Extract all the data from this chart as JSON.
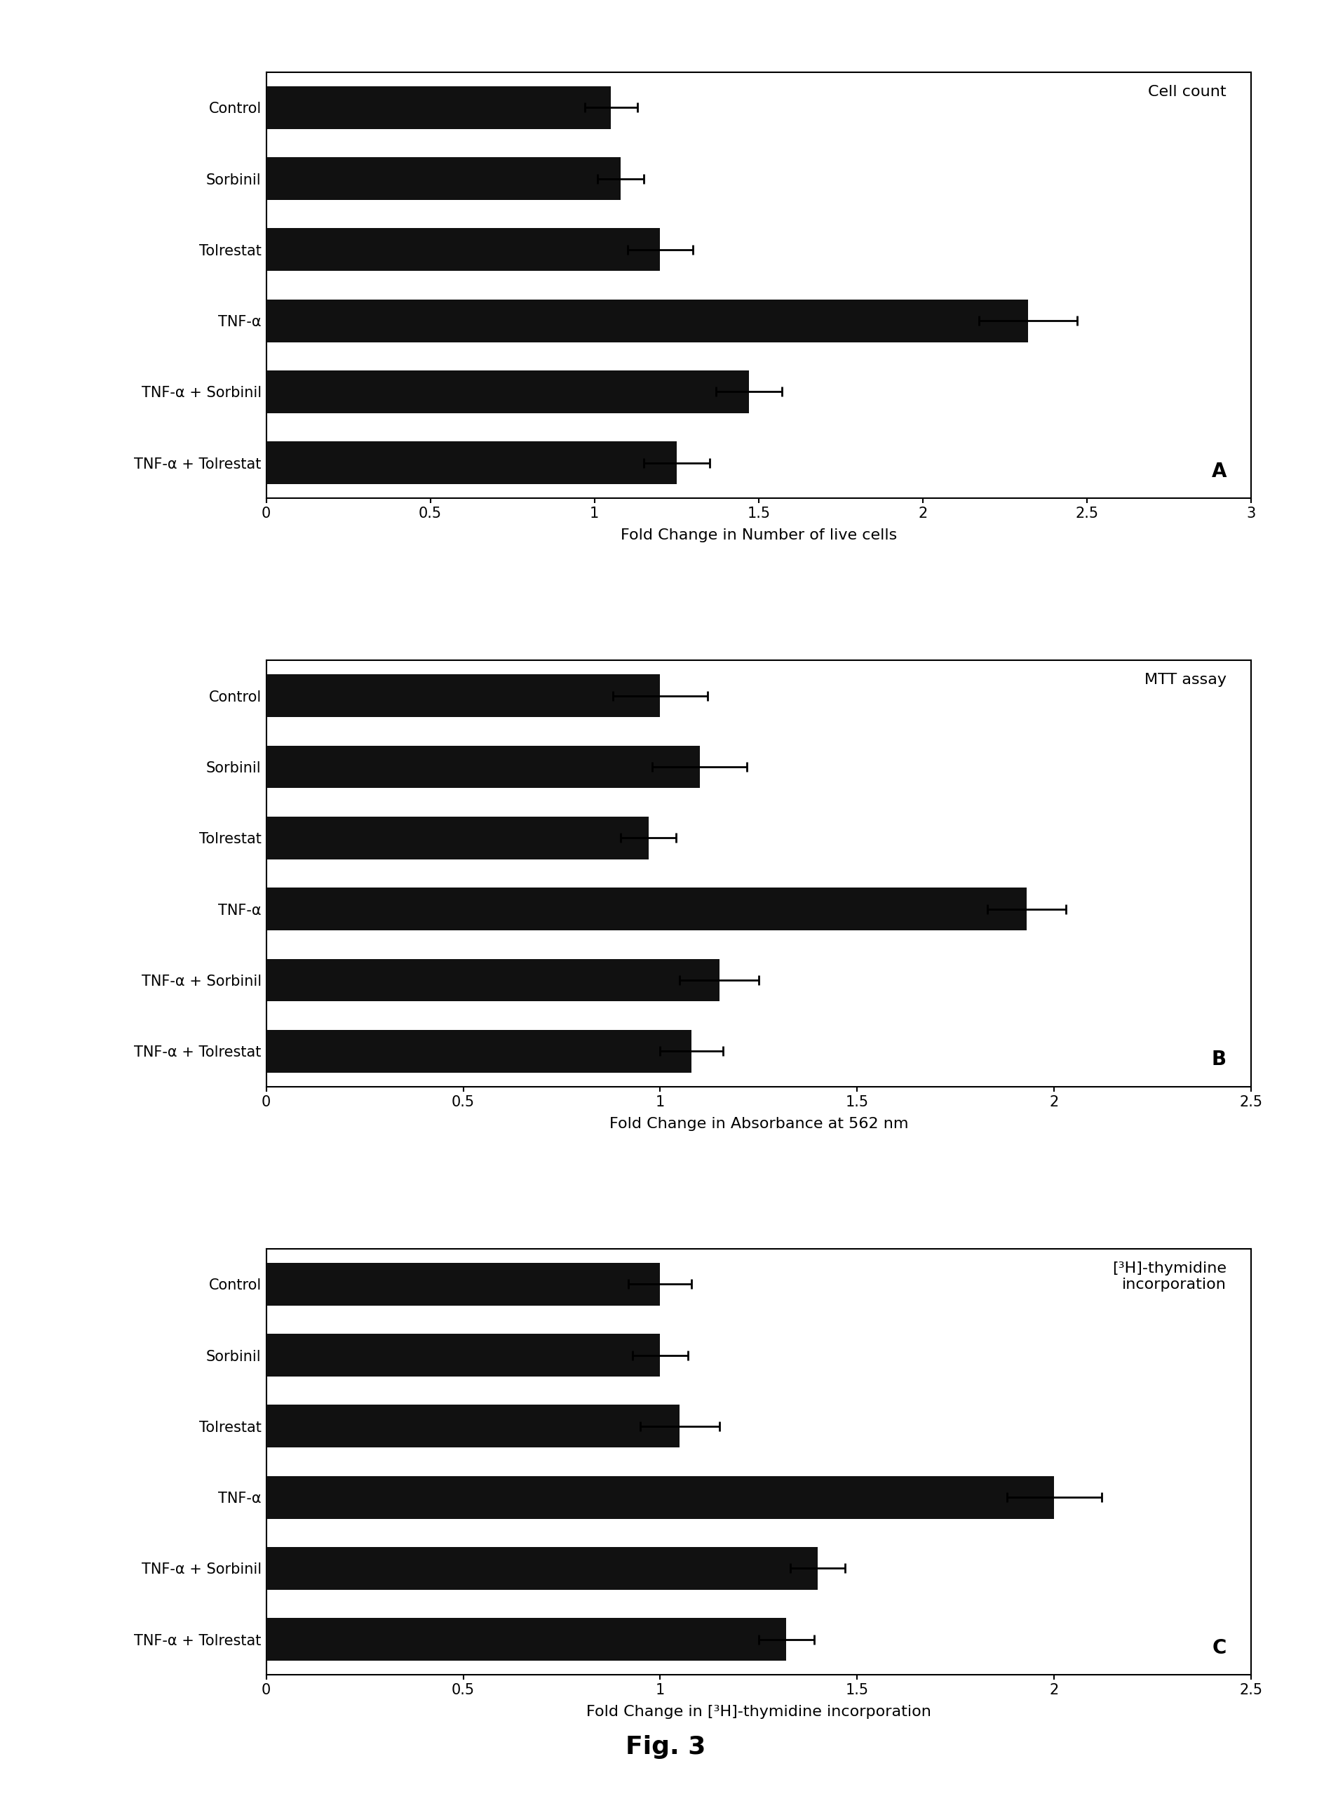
{
  "panel_A": {
    "title": "Cell count",
    "panel_label": "A",
    "categories": [
      "Control",
      "Sorbinil",
      "Tolrestat",
      "TNF-α",
      "TNF-α + Sorbinil",
      "TNF-α + Tolrestat"
    ],
    "values": [
      1.05,
      1.08,
      1.2,
      2.32,
      1.47,
      1.25
    ],
    "errors": [
      0.08,
      0.07,
      0.1,
      0.15,
      0.1,
      0.1
    ],
    "xlabel": "Fold Change in Number of live cells",
    "xlim": [
      0,
      3.0
    ],
    "xticks": [
      0,
      0.5,
      1.0,
      1.5,
      2.0,
      2.5,
      3.0
    ],
    "xticklabels": [
      "0",
      "0.5",
      "1",
      "1.5",
      "2",
      "2.5",
      "3"
    ]
  },
  "panel_B": {
    "title": "MTT assay",
    "panel_label": "B",
    "categories": [
      "Control",
      "Sorbinil",
      "Tolrestat",
      "TNF-α",
      "TNF-α + Sorbinil",
      "TNF-α + Tolrestat"
    ],
    "values": [
      1.0,
      1.1,
      0.97,
      1.93,
      1.15,
      1.08
    ],
    "errors": [
      0.12,
      0.12,
      0.07,
      0.1,
      0.1,
      0.08
    ],
    "xlabel": "Fold Change in Absorbance at 562 nm",
    "xlim": [
      0,
      2.5
    ],
    "xticks": [
      0,
      0.5,
      1.0,
      1.5,
      2.0,
      2.5
    ],
    "xticklabels": [
      "0",
      "0.5",
      "1",
      "1.5",
      "2",
      "2.5"
    ]
  },
  "panel_C": {
    "title": "[³H]-thymidine\nincorporation",
    "panel_label": "C",
    "categories": [
      "Control",
      "Sorbinil",
      "Tolrestat",
      "TNF-α",
      "TNF-α + Sorbinil",
      "TNF-α + Tolrestat"
    ],
    "values": [
      1.0,
      1.0,
      1.05,
      2.0,
      1.4,
      1.32
    ],
    "errors": [
      0.08,
      0.07,
      0.1,
      0.12,
      0.07,
      0.07
    ],
    "xlabel": "Fold Change in [³H]-thymidine incorporation",
    "xlim": [
      0,
      2.5
    ],
    "xticks": [
      0,
      0.5,
      1.0,
      1.5,
      2.0,
      2.5
    ],
    "xticklabels": [
      "0",
      "0.5",
      "1",
      "1.5",
      "2",
      "2.5"
    ]
  },
  "fig_label": "Fig. 3",
  "bar_color": "#111111",
  "bar_height": 0.6,
  "background_color": "#ffffff",
  "label_fontsize": 16,
  "tick_fontsize": 15,
  "ytick_fontsize": 15,
  "title_fontsize": 16,
  "panel_label_fontsize": 20,
  "fig_label_fontsize": 26
}
